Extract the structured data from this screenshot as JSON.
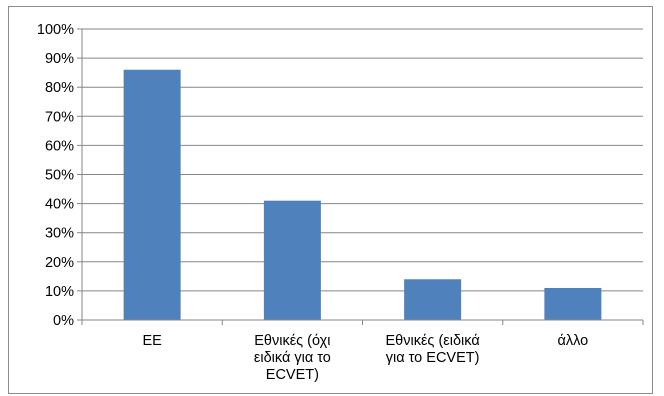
{
  "chart_data": {
    "type": "bar",
    "categories": [
      [
        "ΕΕ"
      ],
      [
        "Εθνικές (όχι",
        "ειδικά για το",
        "ECVET)"
      ],
      [
        "Εθνικές (ειδικά",
        "για το ECVET)"
      ],
      [
        "άλλο"
      ]
    ],
    "values": [
      86,
      41,
      14,
      11
    ],
    "value_unit": "%",
    "ylim": [
      0,
      100
    ],
    "y_ticks": [
      "0%",
      "10%",
      "20%",
      "30%",
      "40%",
      "50%",
      "60%",
      "70%",
      "80%",
      "90%",
      "100%"
    ],
    "title": "",
    "xlabel": "",
    "ylabel": "",
    "grid": true,
    "legend": "none",
    "bar_color": "#4f81bd",
    "gridline_color": "#868686"
  }
}
